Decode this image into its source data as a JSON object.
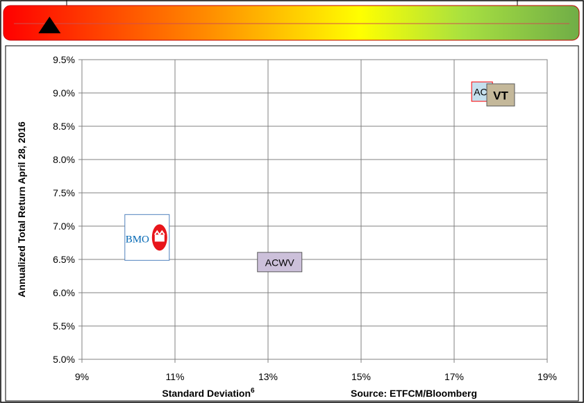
{
  "banner": {
    "gradient": [
      "#ff0000",
      "#ff8a00",
      "#ffff00",
      "#a8e040",
      "#70ad47"
    ],
    "marker_icon": "triangle-up-icon",
    "marker_position": 0.08
  },
  "chart_data": {
    "type": "scatter",
    "ylabel": "Annualized Total Return April 28, 2016",
    "xlabel": "Standard Deviation",
    "xlabel_superscript": "6",
    "source": "Source: ETFCM/Bloomberg",
    "xlim": [
      9,
      19
    ],
    "ylim": [
      5.0,
      9.5
    ],
    "x_ticks": [
      "9%",
      "11%",
      "13%",
      "15%",
      "17%",
      "19%"
    ],
    "x_tick_values": [
      9,
      11,
      13,
      15,
      17,
      19
    ],
    "y_ticks": [
      "9.5%",
      "9.0%",
      "8.5%",
      "8.0%",
      "7.5%",
      "7.0%",
      "6.5%",
      "6.0%",
      "5.5%",
      "5.0%"
    ],
    "y_tick_values": [
      9.5,
      9.0,
      8.5,
      8.0,
      7.5,
      7.0,
      6.5,
      6.0,
      5.5,
      5.0
    ],
    "grid": true,
    "points": [
      {
        "label": "BMO",
        "x": 10.4,
        "y": 6.83,
        "kind": "logo",
        "color": "#e8151b",
        "text_color": "#0066b3"
      },
      {
        "label": "ACWV",
        "x": 13.25,
        "y": 6.46,
        "kind": "box",
        "fill": "#ccc0da"
      },
      {
        "label": "AC",
        "x": 17.6,
        "y": 9.02,
        "kind": "box",
        "fill": "#c5e0ee",
        "border": "#ff0000"
      },
      {
        "label": "VT",
        "x": 18.0,
        "y": 8.97,
        "kind": "box",
        "fill": "#c4b89a",
        "bold": true
      }
    ]
  }
}
